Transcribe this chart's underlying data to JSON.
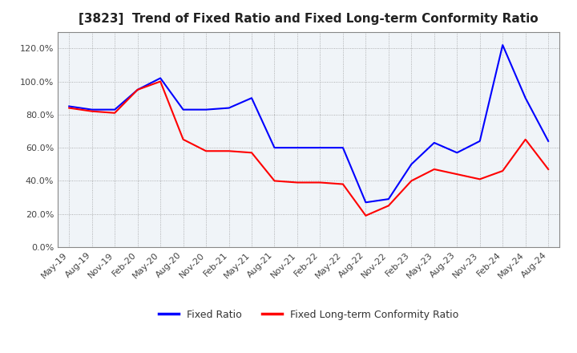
{
  "title": "[3823]  Trend of Fixed Ratio and Fixed Long-term Conformity Ratio",
  "x_labels": [
    "May-19",
    "Aug-19",
    "Nov-19",
    "Feb-20",
    "May-20",
    "Aug-20",
    "Nov-20",
    "Feb-21",
    "May-21",
    "Aug-21",
    "Nov-21",
    "Feb-22",
    "May-22",
    "Aug-22",
    "Nov-22",
    "Feb-23",
    "May-23",
    "Aug-23",
    "Nov-23",
    "Feb-24",
    "May-24",
    "Aug-24"
  ],
  "fixed_ratio": [
    85,
    83,
    83,
    95,
    102,
    83,
    83,
    84,
    90,
    60,
    60,
    60,
    60,
    27,
    29,
    50,
    63,
    57,
    64,
    122,
    90,
    64
  ],
  "fixed_lt_ratio": [
    84,
    82,
    81,
    95,
    100,
    65,
    58,
    58,
    57,
    40,
    39,
    39,
    38,
    19,
    25,
    40,
    47,
    44,
    41,
    46,
    65,
    47
  ],
  "ylim": [
    0,
    130
  ],
  "ytick_vals": [
    0,
    20,
    40,
    60,
    80,
    100,
    120
  ],
  "fixed_ratio_color": "#0000FF",
  "fixed_lt_ratio_color": "#FF0000",
  "bg_color": "#FFFFFF",
  "plot_bg_color": "#F0F4F8",
  "grid_color": "#888888",
  "line_width": 1.5,
  "legend_labels": [
    "Fixed Ratio",
    "Fixed Long-term Conformity Ratio"
  ],
  "title_fontsize": 11,
  "tick_fontsize": 8,
  "legend_fontsize": 9
}
